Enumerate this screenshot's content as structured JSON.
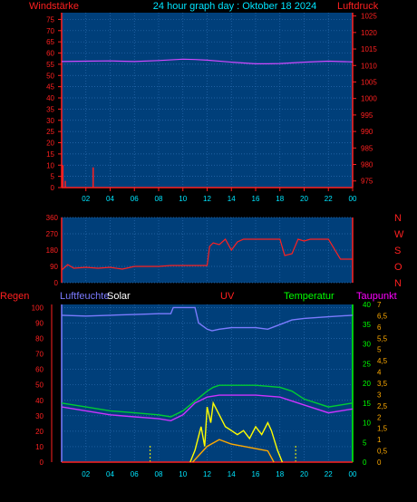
{
  "header": {
    "title": "24 hour graph day : Oktober 18 2024",
    "left_label": "Windstärke",
    "right_label": "Luftdruck",
    "colors": {
      "title": "#00e5ff",
      "wind": "#ff2020",
      "pressure": "#ff00ff"
    }
  },
  "legend2": {
    "compass_labels": [
      "N",
      "W",
      "S",
      "O",
      "N"
    ],
    "color": "#ff2020"
  },
  "legend3": {
    "labels": [
      {
        "text": "Regen",
        "color": "#ff2020"
      },
      {
        "text": "Luftfeuchte",
        "color": "#7b7bff"
      },
      {
        "text": "Solar",
        "color": "#ffffff"
      },
      {
        "text": "UV",
        "color": "#ff2020"
      },
      {
        "text": "Temperatur",
        "color": "#00ff00"
      },
      {
        "text": "Taupunkt",
        "color": "#ff00ff"
      }
    ]
  },
  "chart_data": [
    {
      "type": "line",
      "title": "24 hour graph day : Oktober 18 2024",
      "x_ticks": [
        "02",
        "04",
        "06",
        "08",
        "10",
        "12",
        "14",
        "16",
        "18",
        "20",
        "22",
        "00"
      ],
      "y_left": {
        "label": "Windstärke",
        "ticks": [
          0,
          5,
          10,
          15,
          20,
          25,
          30,
          35,
          40,
          45,
          50,
          55,
          60,
          65,
          70,
          75
        ],
        "ylim": [
          0,
          78
        ]
      },
      "y_right": {
        "label": "Luftdruck",
        "ticks": [
          975,
          980,
          985,
          990,
          995,
          1000,
          1005,
          1010,
          1015,
          1020,
          1025
        ],
        "ylim": [
          973,
          1026
        ]
      },
      "series": [
        {
          "name": "Luftdruck",
          "axis": "right",
          "color": "#d048ff",
          "x": [
            0,
            2,
            4,
            6,
            8,
            10,
            11,
            12,
            14,
            16,
            17,
            18,
            20,
            22,
            24
          ],
          "y": [
            1011.2,
            1011.3,
            1011.4,
            1011.2,
            1011.5,
            1011.9,
            1011.8,
            1011.6,
            1011.0,
            1010.5,
            1010.5,
            1010.6,
            1011.0,
            1011.3,
            1011.1
          ]
        },
        {
          "name": "Windstärke",
          "axis": "left",
          "type": "bar",
          "color": "#ff2020",
          "x": [
            0.1,
            0.3,
            2.6
          ],
          "y": [
            10,
            3,
            9
          ]
        }
      ]
    },
    {
      "type": "line",
      "x_ticks": [],
      "y_left": {
        "ticks": [
          0,
          90,
          180,
          270,
          360
        ],
        "ylim": [
          0,
          360
        ]
      },
      "y_right": {
        "ticks": [
          "N",
          "W",
          "S",
          "O",
          "N"
        ]
      },
      "series": [
        {
          "name": "Windrichtung",
          "color": "#ff2020",
          "x": [
            0,
            0.5,
            1,
            2,
            3,
            4,
            5,
            6,
            7,
            8,
            9,
            10,
            11,
            12,
            12.2,
            12.5,
            13,
            13.5,
            14,
            14.5,
            15,
            16,
            17,
            18,
            18.4,
            19,
            19.5,
            20,
            20.5,
            21,
            22,
            23,
            24
          ],
          "y": [
            70,
            100,
            80,
            85,
            80,
            85,
            75,
            90,
            90,
            90,
            95,
            95,
            95,
            95,
            200,
            220,
            210,
            240,
            180,
            225,
            240,
            240,
            240,
            240,
            150,
            160,
            240,
            230,
            240,
            240,
            240,
            130,
            130
          ]
        }
      ]
    },
    {
      "type": "line",
      "x_ticks": [
        "02",
        "04",
        "06",
        "08",
        "10",
        "12",
        "14",
        "16",
        "18",
        "20",
        "22",
        "00"
      ],
      "y_left_rain": {
        "ticks": [
          0,
          10,
          20,
          30,
          40,
          50,
          60,
          70,
          80,
          90,
          100
        ],
        "ylim": [
          0,
          102
        ]
      },
      "y_right_temp": {
        "label": "Temperatur",
        "ticks": [
          0,
          5,
          10,
          15,
          20,
          25,
          30,
          35,
          40
        ],
        "ylim": [
          0,
          40
        ]
      },
      "y_right_uv": {
        "label": "UV",
        "ticks": [
          "0",
          "0,5",
          "1",
          "1,5",
          "2",
          "2,5",
          "3",
          "3,5",
          "4",
          "4,5",
          "5",
          "5,5",
          "6",
          "6,5",
          "7"
        ]
      },
      "series": [
        {
          "name": "Luftfeuchte",
          "color": "#7b7bff",
          "x": [
            0,
            2,
            4,
            6,
            8,
            9,
            9.2,
            10,
            11,
            11.3,
            12,
            12.4,
            13,
            14,
            16,
            17,
            18,
            19,
            20,
            22,
            24
          ],
          "y": [
            95,
            94.5,
            95,
            95.5,
            96,
            96,
            100,
            100,
            100,
            90,
            86,
            85,
            86,
            87,
            87,
            86,
            89,
            92,
            93,
            94,
            95
          ]
        },
        {
          "name": "Temperatur",
          "color": "#00cc33",
          "x": [
            0,
            2,
            4,
            6,
            8,
            9,
            10,
            11,
            12,
            12.5,
            13,
            14,
            16,
            18,
            19,
            20,
            22,
            24
          ],
          "y": [
            15,
            14,
            13,
            12.5,
            12,
            11.5,
            13,
            15.5,
            18,
            19,
            19.5,
            19.5,
            19.5,
            19,
            18,
            16,
            14,
            15
          ]
        },
        {
          "name": "Taupunkt",
          "color": "#cc33ff",
          "x": [
            0,
            2,
            4,
            6,
            8,
            9,
            10,
            11,
            12,
            13,
            14,
            16,
            18,
            19,
            20,
            22,
            24
          ],
          "y": [
            14,
            13,
            12,
            11.5,
            11,
            10.5,
            12,
            15,
            16.5,
            17,
            17,
            17,
            16.5,
            15.5,
            14.5,
            12.5,
            13.5
          ]
        },
        {
          "name": "Solar",
          "color": "#ffff00",
          "x": [
            10.6,
            11,
            11.5,
            11.8,
            12,
            12.3,
            12.5,
            13,
            13.5,
            14,
            14.5,
            15,
            15.5,
            16,
            16.5,
            17,
            17.3,
            17.8,
            18.2
          ],
          "y": [
            0,
            3,
            9,
            4,
            14,
            10,
            15,
            12,
            9,
            8,
            7,
            8,
            6,
            9,
            7,
            10,
            8,
            3,
            0
          ]
        },
        {
          "name": "UV",
          "color": "#ffaa00",
          "x": [
            10.8,
            12,
            13,
            14,
            15,
            16,
            17,
            17.5
          ],
          "y": [
            0,
            0.7,
            1,
            0.8,
            0.7,
            0.6,
            0.5,
            0
          ]
        }
      ]
    }
  ]
}
